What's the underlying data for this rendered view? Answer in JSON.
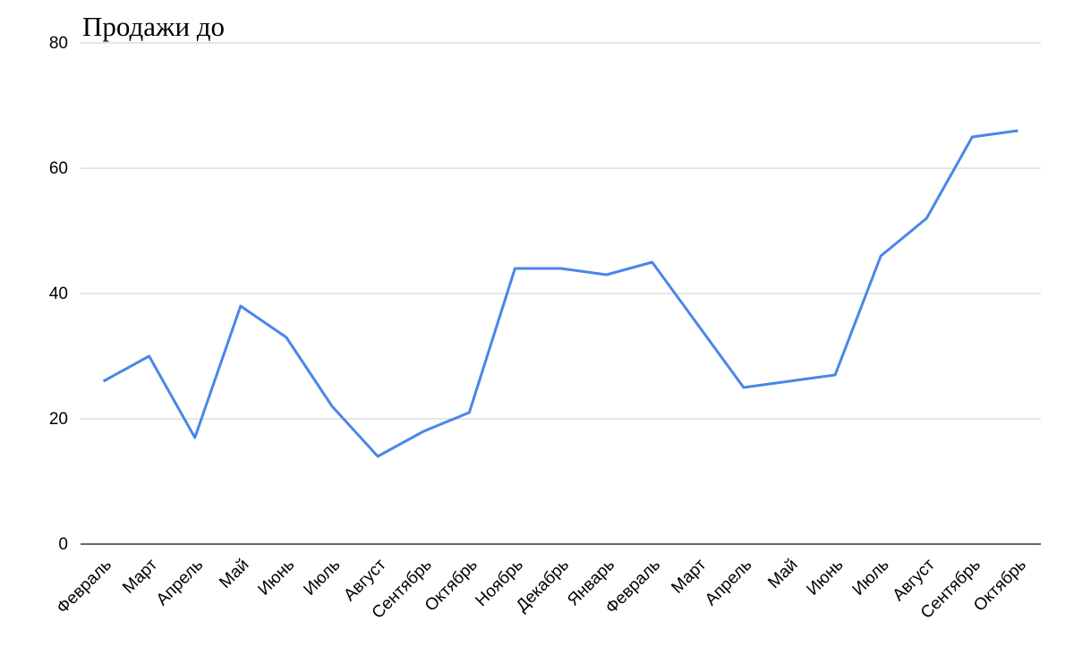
{
  "chart_data": {
    "type": "line",
    "title": "Продажи до",
    "categories": [
      "Февраль",
      "Март",
      "Апрель",
      "Май",
      "Июнь",
      "Июль",
      "Август",
      "Сентябрь",
      "Октябрь",
      "Ноябрь",
      "Декабрь",
      "Январь",
      "Февраль",
      "Март",
      "Апрель",
      "Май",
      "Июнь",
      "Июль",
      "Август",
      "Сентябрь",
      "Октябрь"
    ],
    "values": [
      26,
      30,
      17,
      38,
      33,
      22,
      14,
      18,
      21,
      44,
      44,
      43,
      45,
      35,
      25,
      26,
      27,
      46,
      52,
      65,
      66
    ],
    "color": "#4a86e8",
    "ylim": [
      0,
      80
    ],
    "yticks": [
      0,
      20,
      40,
      60,
      80
    ],
    "grid": true
  }
}
